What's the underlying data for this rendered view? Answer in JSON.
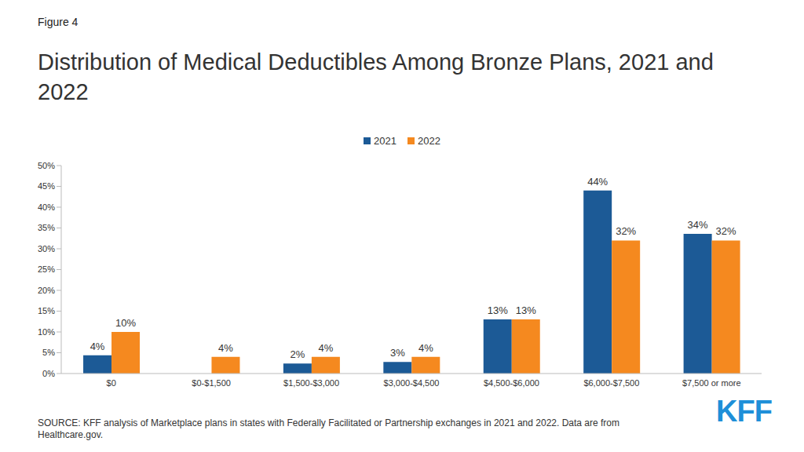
{
  "chart_data": {
    "type": "bar",
    "title": "Distribution of Medical Deductibles Among Bronze Plans, 2021 and 2022",
    "annotations": [
      "Figure 4",
      "SOURCE: KFF analysis of Marketplace plans in states with Federally Facilitated or Partnership exchanges in 2021 and 2022. Data are from Healthcare.gov.",
      "KFF"
    ],
    "categories": [
      "$0",
      "$0-$1,500",
      "$1,500-$3,000",
      "$3,000-$4,500",
      "$4,500-$6,000",
      "$6,000-$7,500",
      "$7,500 or more"
    ],
    "series": [
      {
        "name": "2021",
        "color": "#1c5a96",
        "values": [
          4.4,
          null,
          2.4,
          2.8,
          13,
          44,
          33.6
        ],
        "value_labels": [
          "4%",
          null,
          "2%",
          "3%",
          "13%",
          "44%",
          "34%"
        ]
      },
      {
        "name": "2022",
        "color": "#f5891f",
        "values": [
          10,
          4,
          4,
          4,
          13,
          32,
          32
        ],
        "value_labels": [
          "10%",
          "4%",
          "4%",
          "4%",
          "13%",
          "32%",
          "32%"
        ]
      }
    ],
    "ylim": [
      0,
      50
    ],
    "yticks": [
      {
        "value": 0,
        "label": "0%"
      },
      {
        "value": 5,
        "label": "5%"
      },
      {
        "value": 10,
        "label": "10%"
      },
      {
        "value": 15,
        "label": "15%"
      },
      {
        "value": 20,
        "label": "20%"
      },
      {
        "value": 25,
        "label": "25%"
      },
      {
        "value": 30,
        "label": "30%"
      },
      {
        "value": 35,
        "label": "35%"
      },
      {
        "value": 40,
        "label": "40%"
      },
      {
        "value": 45,
        "label": "45%"
      },
      {
        "value": 50,
        "label": "50%"
      }
    ],
    "grid": false,
    "legend": "top",
    "data_labels": true
  }
}
